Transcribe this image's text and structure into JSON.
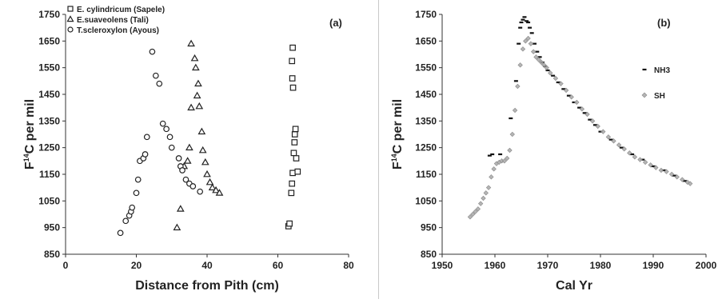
{
  "chart_data": [
    {
      "type": "scatter",
      "panel_label": "(a)",
      "xlabel": "Distance from Pith (cm)",
      "ylabel_prefix": "F",
      "ylabel_sup": "14",
      "ylabel_suffix": "C per mil",
      "xlim": [
        0,
        80
      ],
      "ylim": [
        850,
        1750
      ],
      "xticks": [
        "0",
        "20",
        "40",
        "60",
        "80"
      ],
      "yticks": [
        "850",
        "950",
        "1050",
        "1150",
        "1250",
        "1350",
        "1450",
        "1550",
        "1650",
        "1750"
      ],
      "grid": false,
      "legend_position": "top-left",
      "series": [
        {
          "name": "E. cylindricum (Sapele)",
          "marker": "square",
          "points": [
            [
              63,
              955
            ],
            [
              63.3,
              965
            ],
            [
              63.8,
              1080
            ],
            [
              64,
              1115
            ],
            [
              64.2,
              1155
            ],
            [
              64.5,
              1230
            ],
            [
              64.7,
              1270
            ],
            [
              64.8,
              1300
            ],
            [
              65,
              1320
            ],
            [
              65.2,
              1210
            ],
            [
              65.6,
              1160
            ],
            [
              64.3,
              1475
            ],
            [
              64.1,
              1510
            ],
            [
              64,
              1575
            ],
            [
              64.2,
              1625
            ]
          ]
        },
        {
          "name": "E.suaveolens (Tali)",
          "marker": "triangle",
          "points": [
            [
              31.5,
              950
            ],
            [
              32.5,
              1020
            ],
            [
              33.5,
              1180
            ],
            [
              34.5,
              1200
            ],
            [
              35,
              1250
            ],
            [
              35.5,
              1400
            ],
            [
              35.5,
              1640
            ],
            [
              36.5,
              1585
            ],
            [
              37.5,
              1490
            ],
            [
              37.2,
              1445
            ],
            [
              37.8,
              1405
            ],
            [
              38.5,
              1310
            ],
            [
              38.8,
              1240
            ],
            [
              39.5,
              1195
            ],
            [
              40,
              1150
            ],
            [
              40.8,
              1120
            ],
            [
              41.5,
              1100
            ],
            [
              42.5,
              1090
            ],
            [
              43.5,
              1080
            ],
            [
              36.8,
              1550
            ]
          ]
        },
        {
          "name": "T.scleroxylon (Ayous)",
          "marker": "circle",
          "points": [
            [
              15.5,
              930
            ],
            [
              17,
              975
            ],
            [
              18,
              995
            ],
            [
              18.5,
              1010
            ],
            [
              18.8,
              1025
            ],
            [
              20,
              1080
            ],
            [
              20.5,
              1130
            ],
            [
              21,
              1200
            ],
            [
              22,
              1210
            ],
            [
              22.5,
              1225
            ],
            [
              23,
              1290
            ],
            [
              24.5,
              1610
            ],
            [
              25.5,
              1520
            ],
            [
              26.5,
              1490
            ],
            [
              27.5,
              1340
            ],
            [
              28.5,
              1320
            ],
            [
              29.5,
              1290
            ],
            [
              30,
              1250
            ],
            [
              32,
              1210
            ],
            [
              32.5,
              1180
            ],
            [
              33,
              1165
            ],
            [
              34,
              1130
            ],
            [
              35,
              1115
            ],
            [
              36,
              1105
            ],
            [
              38,
              1085
            ]
          ]
        }
      ]
    },
    {
      "type": "scatter",
      "panel_label": "(b)",
      "xlabel": "Cal Yr",
      "ylabel_prefix": "F",
      "ylabel_sup": "14",
      "ylabel_suffix": "C per mil",
      "xlim": [
        1950,
        2000
      ],
      "ylim": [
        850,
        1750
      ],
      "xticks": [
        "1950",
        "1960",
        "1970",
        "1980",
        "1990",
        "2000"
      ],
      "yticks": [
        "850",
        "950",
        "1050",
        "1150",
        "1250",
        "1350",
        "1450",
        "1550",
        "1650",
        "1750"
      ],
      "grid": false,
      "legend_position": "right",
      "series": [
        {
          "name": "NH3",
          "marker": "dash",
          "color": "#111111",
          "points": [
            [
              1959,
              1220
            ],
            [
              1959.5,
              1225
            ],
            [
              1961,
              1225
            ],
            [
              1963,
              1360
            ],
            [
              1964,
              1500
            ],
            [
              1964.5,
              1640
            ],
            [
              1964.8,
              1700
            ],
            [
              1965,
              1720
            ],
            [
              1965.3,
              1730
            ],
            [
              1965.6,
              1740
            ],
            [
              1966,
              1725
            ],
            [
              1966.3,
              1720
            ],
            [
              1966.6,
              1700
            ],
            [
              1967,
              1680
            ],
            [
              1967.5,
              1640
            ],
            [
              1968,
              1610
            ],
            [
              1968.5,
              1590
            ],
            [
              1969,
              1570
            ],
            [
              1969.5,
              1555
            ],
            [
              1970,
              1540
            ],
            [
              1971,
              1520
            ],
            [
              1972,
              1495
            ],
            [
              1973,
              1470
            ],
            [
              1974,
              1445
            ],
            [
              1975,
              1420
            ],
            [
              1976,
              1400
            ],
            [
              1977,
              1380
            ],
            [
              1978,
              1355
            ],
            [
              1979,
              1335
            ],
            [
              1980,
              1310
            ],
            [
              1982,
              1280
            ],
            [
              1984,
              1250
            ],
            [
              1986,
              1225
            ],
            [
              1988,
              1205
            ],
            [
              1990,
              1180
            ],
            [
              1992,
              1165
            ],
            [
              1994,
              1145
            ],
            [
              1996,
              1125
            ]
          ]
        },
        {
          "name": "SH",
          "marker": "diamond",
          "color": "#a8a8a8",
          "points": [
            [
              1955.3,
              990
            ],
            [
              1955.8,
              1000
            ],
            [
              1956.3,
              1010
            ],
            [
              1956.8,
              1020
            ],
            [
              1957.3,
              1040
            ],
            [
              1957.8,
              1060
            ],
            [
              1958.3,
              1080
            ],
            [
              1958.8,
              1100
            ],
            [
              1959.3,
              1140
            ],
            [
              1959.8,
              1170
            ],
            [
              1960.3,
              1190
            ],
            [
              1960.8,
              1195
            ],
            [
              1961.3,
              1200
            ],
            [
              1961.8,
              1200
            ],
            [
              1962.3,
              1210
            ],
            [
              1962.8,
              1240
            ],
            [
              1963.3,
              1300
            ],
            [
              1963.8,
              1390
            ],
            [
              1964.3,
              1480
            ],
            [
              1964.8,
              1560
            ],
            [
              1965.3,
              1620
            ],
            [
              1965.8,
              1650
            ],
            [
              1966.3,
              1660
            ],
            [
              1966.8,
              1640
            ],
            [
              1967.3,
              1610
            ],
            [
              1967.8,
              1590
            ],
            [
              1968.3,
              1580
            ],
            [
              1968.8,
              1570
            ],
            [
              1969.3,
              1560
            ],
            [
              1969.8,
              1550
            ],
            [
              1970.5,
              1530
            ],
            [
              1971.5,
              1510
            ],
            [
              1972.5,
              1490
            ],
            [
              1973.5,
              1465
            ],
            [
              1974.5,
              1440
            ],
            [
              1975.5,
              1420
            ],
            [
              1976.5,
              1395
            ],
            [
              1977.5,
              1375
            ],
            [
              1978.5,
              1350
            ],
            [
              1979.5,
              1330
            ],
            [
              1980.5,
              1310
            ],
            [
              1981.5,
              1290
            ],
            [
              1982.5,
              1275
            ],
            [
              1983.5,
              1260
            ],
            [
              1984.5,
              1245
            ],
            [
              1985.5,
              1230
            ],
            [
              1986.5,
              1215
            ],
            [
              1987.5,
              1205
            ],
            [
              1988.5,
              1195
            ],
            [
              1989.5,
              1185
            ],
            [
              1990.5,
              1175
            ],
            [
              1991.5,
              1165
            ],
            [
              1992.5,
              1160
            ],
            [
              1993.5,
              1150
            ],
            [
              1994.5,
              1140
            ],
            [
              1995.5,
              1130
            ],
            [
              1996.5,
              1120
            ],
            [
              1997,
              1115
            ]
          ]
        }
      ]
    }
  ]
}
